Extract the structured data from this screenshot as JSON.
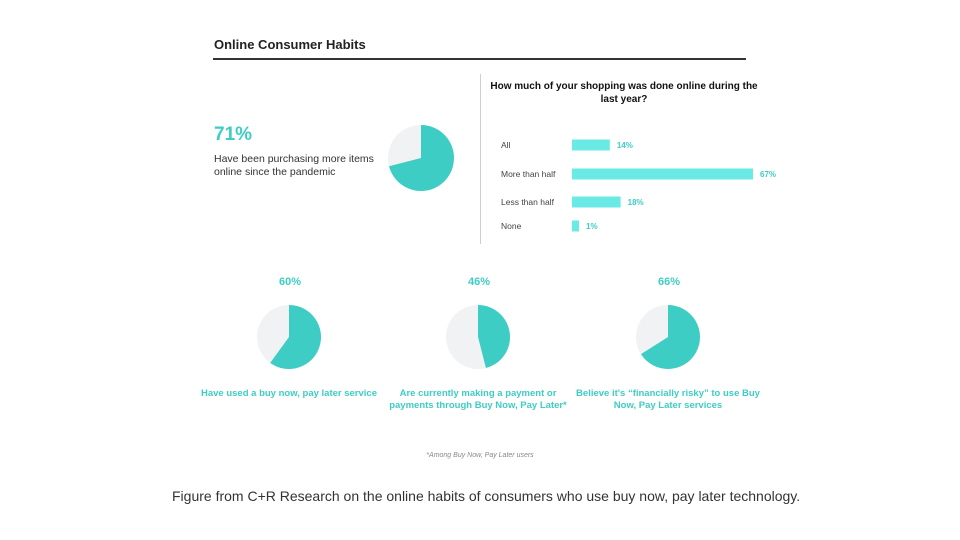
{
  "colors": {
    "accent": "#3ecdc5",
    "bar": "#6aeae4",
    "pie_bg": "#f1f2f4"
  },
  "header": {
    "title": "Online Consumer Habits"
  },
  "stat": {
    "pct": "71%",
    "desc": "Have been purchasing more items online since the pandemic"
  },
  "bar_chart": {
    "title": "How much of your shopping was done online during the last year?"
  },
  "kpis": [
    {
      "pct": "60%",
      "caption": "Have used a buy now, pay later service"
    },
    {
      "pct": "46%",
      "caption": "Are currently making a payment or payments through Buy Now, Pay Later*"
    },
    {
      "pct": "66%",
      "caption": "Believe it's “financially risky” to use Buy Now, Pay Later services"
    }
  ],
  "footnote": "*Among Buy Now, Pay Later users",
  "caption": "Figure from C+R Research on the online habits of consumers who use buy now, pay later technology.",
  "chart_data": [
    {
      "type": "pie",
      "labels": [
        "Have been purchasing more items online since the pandemic",
        "Other"
      ],
      "values": [
        71,
        29
      ]
    },
    {
      "type": "bar",
      "orientation": "horizontal",
      "title": "How much of your shopping was done online during the last year?",
      "categories": [
        "All",
        "More than half",
        "Less than half",
        "None"
      ],
      "values": [
        14,
        67,
        18,
        1
      ],
      "value_labels": [
        "14%",
        "67%",
        "18%",
        "1%"
      ],
      "xlim": [
        0,
        67
      ]
    },
    {
      "type": "pie",
      "labels": [
        "Have used a buy now, pay later service",
        "Other"
      ],
      "values": [
        60,
        40
      ]
    },
    {
      "type": "pie",
      "labels": [
        "Are currently making a payment or payments through Buy Now, Pay Later*",
        "Other"
      ],
      "values": [
        46,
        54
      ]
    },
    {
      "type": "pie",
      "labels": [
        "Believe it's “financially risky” to use Buy Now, Pay Later services",
        "Other"
      ],
      "values": [
        66,
        34
      ]
    }
  ]
}
